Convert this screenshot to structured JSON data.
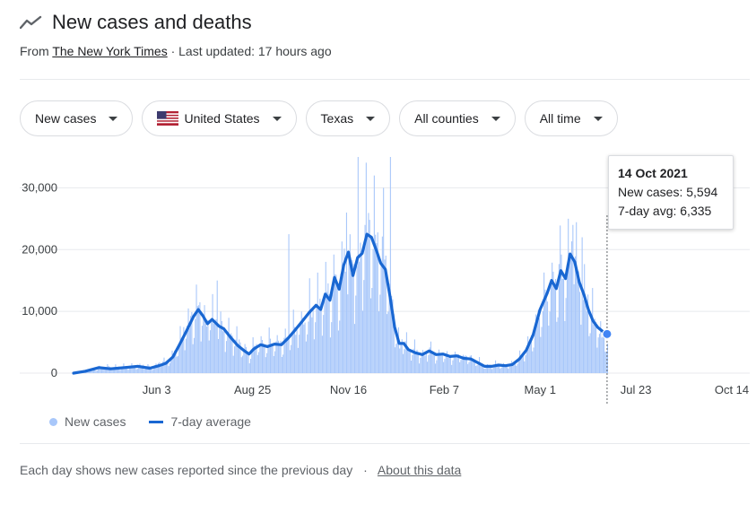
{
  "header": {
    "title": "New cases and deaths"
  },
  "source": {
    "prefix": "From",
    "name": "The New York Times",
    "updated": "· Last updated: 17 hours ago"
  },
  "filters": [
    {
      "label": "New cases"
    },
    {
      "label": "United States",
      "icon": "us-flag-icon"
    },
    {
      "label": "Texas"
    },
    {
      "label": "All counties"
    },
    {
      "label": "All time"
    }
  ],
  "tooltip": {
    "date": "14 Oct 2021",
    "cases": "New cases: 5,594",
    "avg": "7-day avg: 6,335"
  },
  "legend": {
    "cases": "New cases",
    "avg": "7-day average"
  },
  "footer": {
    "text": "Each day shows new cases reported since the previous day",
    "link": "About this data"
  },
  "colors": {
    "bars": "#a8c7fa",
    "line": "#1967d2",
    "grid": "#e8eaed"
  },
  "chart_data": {
    "type": "bar",
    "y_ticks": [
      "0",
      "10,000",
      "20,000",
      "30,000"
    ],
    "ylim": [
      0,
      35000
    ],
    "x_ticks": [
      "Jun 3",
      "Aug 25",
      "Nov 16",
      "Feb 7",
      "May 1",
      "Jul 23",
      "Oct 14"
    ],
    "x_tick_days": [
      72,
      155,
      238,
      321,
      404,
      487,
      570
    ],
    "x_range_days": [
      0,
      570
    ],
    "series": [
      {
        "name": "New cases",
        "points": [
          [
            0,
            50
          ],
          [
            10,
            300
          ],
          [
            20,
            700
          ],
          [
            30,
            1100
          ],
          [
            40,
            1000
          ],
          [
            50,
            1100
          ],
          [
            60,
            1200
          ],
          [
            68,
            1000
          ],
          [
            74,
            1600
          ],
          [
            80,
            1800
          ],
          [
            86,
            3000
          ],
          [
            92,
            5500
          ],
          [
            98,
            7500
          ],
          [
            104,
            9500
          ],
          [
            108,
            10500
          ],
          [
            112,
            9800
          ],
          [
            116,
            8500
          ],
          [
            120,
            9500
          ],
          [
            126,
            8000
          ],
          [
            130,
            7500
          ],
          [
            136,
            6500
          ],
          [
            142,
            5000
          ],
          [
            148,
            4000
          ],
          [
            152,
            3200
          ],
          [
            156,
            4500
          ],
          [
            162,
            5000
          ],
          [
            166,
            4200
          ],
          [
            170,
            5000
          ],
          [
            176,
            4500
          ],
          [
            182,
            5000
          ],
          [
            188,
            6500
          ],
          [
            194,
            7500
          ],
          [
            200,
            9000
          ],
          [
            206,
            10500
          ],
          [
            210,
            11500
          ],
          [
            214,
            10500
          ],
          [
            218,
            14000
          ],
          [
            222,
            12000
          ],
          [
            226,
            16500
          ],
          [
            230,
            14000
          ],
          [
            234,
            18000
          ],
          [
            238,
            20500
          ],
          [
            242,
            16000
          ],
          [
            246,
            19500
          ],
          [
            250,
            20000
          ],
          [
            254,
            23000
          ],
          [
            258,
            22500
          ],
          [
            262,
            20500
          ],
          [
            266,
            18500
          ],
          [
            270,
            17500
          ],
          [
            274,
            13000
          ],
          [
            278,
            8000
          ],
          [
            282,
            4500
          ],
          [
            286,
            5500
          ],
          [
            290,
            4000
          ],
          [
            296,
            3500
          ],
          [
            302,
            3000
          ],
          [
            308,
            3800
          ],
          [
            314,
            3000
          ],
          [
            320,
            3200
          ],
          [
            326,
            2800
          ],
          [
            332,
            3000
          ],
          [
            338,
            2500
          ],
          [
            344,
            2500
          ],
          [
            350,
            1800
          ],
          [
            356,
            1200
          ],
          [
            362,
            1200
          ],
          [
            368,
            1500
          ],
          [
            374,
            1300
          ],
          [
            380,
            1500
          ],
          [
            386,
            2500
          ],
          [
            392,
            4000
          ],
          [
            398,
            6500
          ],
          [
            404,
            11000
          ],
          [
            410,
            13500
          ],
          [
            414,
            15500
          ],
          [
            418,
            14000
          ],
          [
            422,
            17000
          ],
          [
            426,
            15500
          ],
          [
            430,
            20000
          ],
          [
            434,
            18500
          ],
          [
            438,
            15000
          ],
          [
            442,
            13000
          ],
          [
            446,
            10500
          ],
          [
            450,
            8500
          ],
          [
            454,
            7500
          ],
          [
            458,
            6500
          ],
          [
            462,
            5600
          ]
        ],
        "spikes": [
          [
            124,
            15000
          ],
          [
            186,
            22500
          ],
          [
            246,
            36000
          ],
          [
            274,
            36000
          ],
          [
            268,
            30000
          ],
          [
            236,
            26000
          ],
          [
            260,
            32000
          ],
          [
            428,
            25000
          ],
          [
            432,
            24000
          ],
          [
            440,
            22000
          ]
        ]
      },
      {
        "name": "7-day average",
        "values": [
          [
            0,
            0
          ],
          [
            10,
            300
          ],
          [
            22,
            900
          ],
          [
            32,
            700
          ],
          [
            44,
            900
          ],
          [
            56,
            1100
          ],
          [
            66,
            800
          ],
          [
            74,
            1200
          ],
          [
            80,
            1600
          ],
          [
            86,
            2600
          ],
          [
            92,
            4700
          ],
          [
            98,
            6900
          ],
          [
            104,
            9200
          ],
          [
            108,
            10300
          ],
          [
            112,
            9300
          ],
          [
            116,
            8000
          ],
          [
            120,
            8700
          ],
          [
            126,
            7600
          ],
          [
            130,
            7200
          ],
          [
            136,
            5800
          ],
          [
            142,
            4500
          ],
          [
            148,
            3600
          ],
          [
            152,
            3100
          ],
          [
            156,
            3900
          ],
          [
            162,
            4600
          ],
          [
            168,
            4300
          ],
          [
            174,
            4700
          ],
          [
            180,
            4600
          ],
          [
            186,
            5700
          ],
          [
            192,
            7000
          ],
          [
            198,
            8400
          ],
          [
            204,
            9800
          ],
          [
            210,
            11000
          ],
          [
            214,
            10300
          ],
          [
            218,
            12800
          ],
          [
            222,
            11800
          ],
          [
            226,
            15500
          ],
          [
            230,
            13600
          ],
          [
            234,
            17500
          ],
          [
            238,
            19600
          ],
          [
            242,
            15800
          ],
          [
            246,
            18700
          ],
          [
            250,
            19400
          ],
          [
            254,
            22500
          ],
          [
            258,
            22000
          ],
          [
            262,
            20000
          ],
          [
            266,
            17800
          ],
          [
            270,
            16800
          ],
          [
            274,
            12500
          ],
          [
            278,
            7500
          ],
          [
            282,
            4800
          ],
          [
            286,
            4800
          ],
          [
            290,
            3800
          ],
          [
            296,
            3300
          ],
          [
            302,
            3000
          ],
          [
            308,
            3600
          ],
          [
            314,
            3000
          ],
          [
            320,
            3100
          ],
          [
            326,
            2700
          ],
          [
            332,
            2800
          ],
          [
            338,
            2400
          ],
          [
            344,
            2300
          ],
          [
            350,
            1700
          ],
          [
            356,
            1100
          ],
          [
            362,
            1100
          ],
          [
            368,
            1300
          ],
          [
            374,
            1200
          ],
          [
            380,
            1400
          ],
          [
            386,
            2300
          ],
          [
            392,
            3700
          ],
          [
            398,
            6200
          ],
          [
            404,
            10300
          ],
          [
            410,
            12900
          ],
          [
            414,
            15000
          ],
          [
            418,
            13700
          ],
          [
            422,
            16600
          ],
          [
            426,
            15300
          ],
          [
            430,
            19300
          ],
          [
            434,
            18000
          ],
          [
            438,
            14700
          ],
          [
            442,
            12700
          ],
          [
            446,
            10200
          ],
          [
            450,
            8400
          ],
          [
            454,
            7400
          ],
          [
            458,
            6800
          ],
          [
            462,
            6335
          ]
        ]
      }
    ],
    "legend": "bottom-left",
    "grid": true,
    "title": "New cases and deaths",
    "xlabel": "",
    "ylabel": ""
  }
}
